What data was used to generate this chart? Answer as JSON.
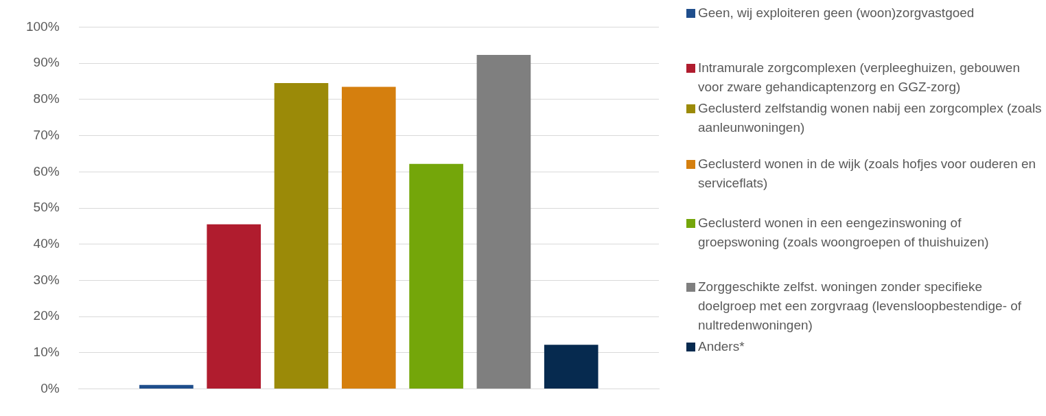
{
  "chart_data": {
    "type": "bar",
    "categories": [
      null
    ],
    "series": [
      {
        "name": "Geen, wij exploiteren geen (woon)zorgvastgoed",
        "color": "#1f4e8c",
        "values": [
          1.1
        ]
      },
      {
        "name": " Intramurale zorgcomplexen (verpleeghuizen, gebouwen voor zware gehandicaptenzorg en GGZ-zorg)",
        "color": "#b01c2e",
        "values": [
          45.5
        ]
      },
      {
        "name": " Geclusterd zelfstandig wonen nabij een zorgcomplex (zoals aanleunwoningen)",
        "color": "#9b8a08",
        "values": [
          84.5
        ]
      },
      {
        "name": "Geclusterd wonen in de wijk (zoals hofjes voor ouderen en serviceflats)",
        "color": "#d57f0e",
        "values": [
          83.5
        ]
      },
      {
        "name": "Geclusterd wonen in een eengezinswoning of groepswoning (zoals woongroepen of thuishuizen)",
        "color": "#74a60a",
        "values": [
          62.2
        ]
      },
      {
        "name": "Zorggeschikte zelfst. woningen zonder specifieke doelgroep met een zorgvraag (levensloopbestendige- of nultredenwoningen)",
        "color": "#7f7f7f",
        "values": [
          92.3
        ]
      },
      {
        "name": "Anders*",
        "color": "#062a4f",
        "values": [
          12.2
        ]
      }
    ],
    "ylim": [
      0,
      100
    ],
    "yticks": [
      {
        "value": 0,
        "label": "0%"
      },
      {
        "value": 10,
        "label": "10%"
      },
      {
        "value": 20,
        "label": "20%"
      },
      {
        "value": 30,
        "label": "30%"
      },
      {
        "value": 40,
        "label": "40%"
      },
      {
        "value": 50,
        "label": "50%"
      },
      {
        "value": 60,
        "label": "60%"
      },
      {
        "value": 70,
        "label": "70%"
      },
      {
        "value": 80,
        "label": "80%"
      },
      {
        "value": 90,
        "label": "90%"
      },
      {
        "value": 100,
        "label": "100%"
      }
    ],
    "grid": "y",
    "legend": "right"
  }
}
